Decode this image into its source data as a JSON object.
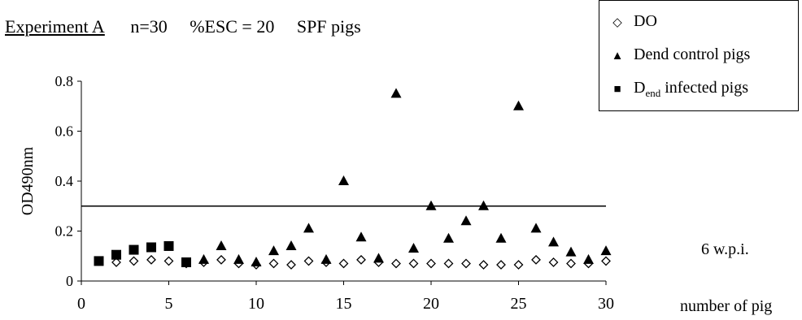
{
  "header": {
    "experiment": "Experiment A",
    "n": "n=30",
    "esc": "%ESC = 20",
    "animals": "SPF pigs"
  },
  "legend": {
    "items": [
      {
        "symbol": "◇",
        "label": "DO"
      },
      {
        "symbol": "▲",
        "label": "Dend control pigs"
      },
      {
        "symbol": "■",
        "label_main": "D",
        "label_sub": "end",
        "label_rest": " infected pigs"
      }
    ]
  },
  "side": {
    "timepoint": "6 w.p.i.",
    "xlabel": "number of pig"
  },
  "chart_data": {
    "type": "scatter",
    "ylabel": "OD490nm",
    "xlabel": "number of pig",
    "xlim": [
      0,
      30
    ],
    "ylim": [
      0,
      0.8
    ],
    "xticks": [
      "0",
      "5",
      "10",
      "15",
      "20",
      "25",
      "30"
    ],
    "yticks": [
      "0",
      "0.2",
      "0.4",
      "0.6",
      "0.8"
    ],
    "threshold": 0.3,
    "series": [
      {
        "name": "DO",
        "marker": "diamond-open",
        "x": [
          1,
          2,
          3,
          4,
          5,
          6,
          7,
          8,
          9,
          10,
          11,
          12,
          13,
          14,
          15,
          16,
          17,
          18,
          19,
          20,
          21,
          22,
          23,
          24,
          25,
          26,
          27,
          28,
          29,
          30
        ],
        "y": [
          0.08,
          0.075,
          0.08,
          0.085,
          0.08,
          0.07,
          0.075,
          0.085,
          0.07,
          0.065,
          0.07,
          0.065,
          0.08,
          0.075,
          0.07,
          0.085,
          0.075,
          0.07,
          0.07,
          0.07,
          0.07,
          0.07,
          0.065,
          0.065,
          0.065,
          0.085,
          0.075,
          0.07,
          0.07,
          0.08
        ]
      },
      {
        "name": "Dend control pigs",
        "marker": "triangle",
        "x": [
          7,
          8,
          9,
          10,
          11,
          12,
          13,
          14,
          15,
          16,
          17,
          18,
          19,
          20,
          21,
          22,
          23,
          24,
          25,
          26,
          27,
          28,
          29,
          30
        ],
        "y": [
          0.085,
          0.14,
          0.085,
          0.075,
          0.12,
          0.14,
          0.21,
          0.085,
          0.4,
          0.175,
          0.09,
          0.75,
          0.13,
          0.3,
          0.17,
          0.24,
          0.3,
          0.17,
          0.7,
          0.21,
          0.155,
          0.115,
          0.085,
          0.12
        ]
      },
      {
        "name": "Dend infected pigs",
        "marker": "square",
        "x": [
          1,
          2,
          3,
          4,
          5,
          6
        ],
        "y": [
          0.08,
          0.105,
          0.125,
          0.135,
          0.14,
          0.075
        ]
      }
    ]
  }
}
